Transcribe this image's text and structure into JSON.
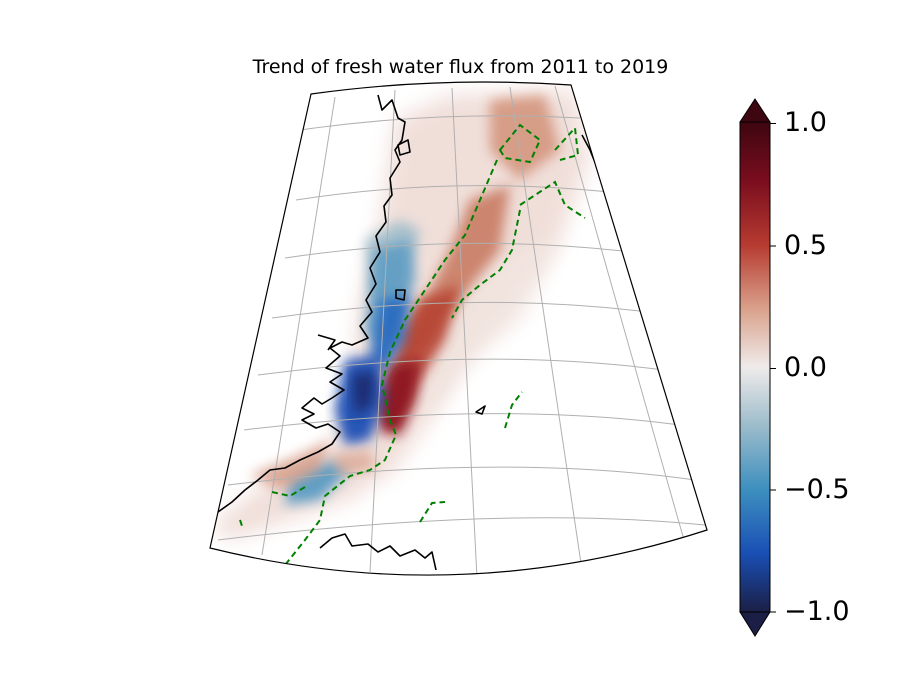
{
  "title": "Trend of fresh water flux from 2011 to 2019",
  "colorbar": {
    "min": -1.0,
    "max": 1.0,
    "extend": "both",
    "ticks": [
      {
        "value": 1.0,
        "label": "1.0"
      },
      {
        "value": 0.5,
        "label": "0.5"
      },
      {
        "value": 0.0,
        "label": "0.0"
      },
      {
        "value": -0.5,
        "label": "−0.5"
      },
      {
        "value": -1.0,
        "label": "−1.0"
      }
    ],
    "colors": {
      "max": "#3d0610",
      "high": "#a61b2e",
      "mid_high": "#c4593b",
      "zero": "#f1ecea",
      "mid_low": "#3d8fbf",
      "low": "#1a4fb5",
      "min": "#1b1f45"
    }
  },
  "map": {
    "projection": "conic",
    "gridlines": true,
    "coastline_color": "#000000",
    "dashed_contour_color": "#008000",
    "colors": {
      "gridline": "#b0b0b0",
      "coast": "#000000",
      "contour": "#008000"
    }
  }
}
